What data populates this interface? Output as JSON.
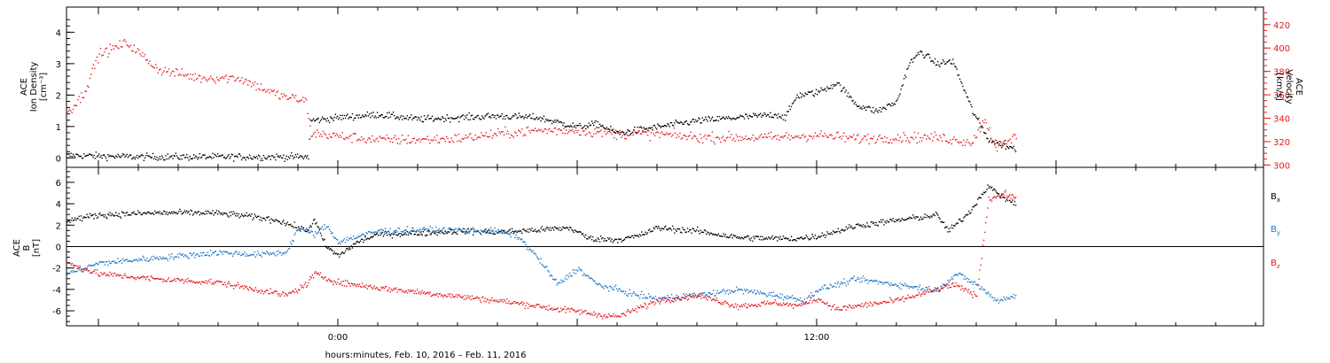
{
  "xlabel": "hours:minutes, Feb. 10, 2016 – Feb. 11, 2016",
  "x_ticks": [
    {
      "t": 0,
      "label": "0:00"
    },
    {
      "t": 12,
      "label": "12:00"
    }
  ],
  "xlim": [
    -6.8,
    23.2
  ],
  "data_end_hour": 17.0,
  "chart_data": [
    {
      "type": "scatter",
      "title": "",
      "ylabel": [
        "ACE",
        "Ion Density",
        "[cm⁻³]"
      ],
      "ylim": [
        -0.3,
        4.8
      ],
      "yticks": [
        0,
        1,
        2,
        3,
        4
      ],
      "y2label": [
        "ACE",
        "Velocity",
        "[km/s]"
      ],
      "y2lim": [
        298,
        435
      ],
      "y2ticks": [
        300,
        320,
        340,
        360,
        380,
        400,
        420
      ],
      "grid": false,
      "series": [
        {
          "name": "",
          "axis": "left",
          "color": "#000000",
          "x": [
            -6.8,
            -5.0,
            -3.0,
            -1.5,
            -0.75,
            -0.7,
            0.0,
            1.0,
            2.0,
            3.0,
            4.0,
            5.0,
            6.0,
            6.5,
            7.0,
            8.0,
            9.0,
            10.0,
            11.0,
            11.2,
            11.5,
            12.0,
            12.5,
            13.0,
            13.5,
            14.0,
            14.3,
            14.6,
            15.0,
            15.4,
            15.9,
            16.3,
            16.7,
            17.0
          ],
          "y": [
            0.1,
            0.05,
            0.05,
            0.05,
            0.05,
            1.2,
            1.3,
            1.4,
            1.25,
            1.3,
            1.35,
            1.3,
            1.0,
            1.1,
            0.8,
            1.0,
            1.2,
            1.3,
            1.4,
            1.3,
            2.0,
            2.1,
            2.4,
            1.7,
            1.5,
            1.8,
            3.0,
            3.4,
            3.0,
            3.1,
            1.5,
            0.6,
            0.4,
            0.3
          ]
        },
        {
          "name": "",
          "axis": "right",
          "color": "#e4191c",
          "x": [
            -6.8,
            -6.4,
            -6.0,
            -5.3,
            -4.5,
            -3.5,
            -2.5,
            -1.5,
            -0.8,
            -0.7,
            0.0,
            1.0,
            2.0,
            3.0,
            4.0,
            5.0,
            6.0,
            7.0,
            8.0,
            9.0,
            10.0,
            11.0,
            12.0,
            13.0,
            14.0,
            15.0,
            15.9,
            16.2,
            16.5,
            17.0
          ],
          "y": [
            345,
            360,
            395,
            405,
            382,
            375,
            375,
            360,
            355,
            328,
            325,
            322,
            322,
            323,
            327,
            330,
            330,
            327,
            327,
            324,
            324,
            324,
            326,
            323,
            324,
            324,
            320,
            340,
            315,
            325
          ]
        }
      ]
    },
    {
      "type": "scatter",
      "title": "",
      "ylabel": [
        "ACE",
        "B",
        "[nT]"
      ],
      "ylim": [
        -7.4,
        7.4
      ],
      "yticks": [
        -6,
        -4,
        -2,
        0,
        2,
        4,
        6
      ],
      "zero_line": true,
      "grid": false,
      "series": [
        {
          "name": "B",
          "sub": "x",
          "color": "#000000",
          "x": [
            -6.8,
            -6.0,
            -4.5,
            -3.2,
            -2.5,
            -1.5,
            -0.8,
            -0.6,
            -0.3,
            0.0,
            0.5,
            1.0,
            2.0,
            3.0,
            4.0,
            5.0,
            5.8,
            6.3,
            7.0,
            7.5,
            8.0,
            9.0,
            10.0,
            11.0,
            11.5,
            12.0,
            13.0,
            14.0,
            15.0,
            15.3,
            15.8,
            16.3,
            16.5,
            17.0
          ],
          "y": [
            2.5,
            3.0,
            3.2,
            3.2,
            3.0,
            2.5,
            1.5,
            2.5,
            0.0,
            -0.8,
            0.5,
            1.2,
            1.3,
            1.5,
            1.4,
            1.6,
            1.8,
            0.8,
            0.7,
            1.0,
            1.8,
            1.5,
            0.9,
            0.8,
            0.8,
            1.0,
            2.0,
            2.5,
            3.0,
            1.5,
            3.2,
            5.8,
            5.0,
            4.0
          ]
        },
        {
          "name": "B",
          "sub": "y",
          "color": "#1f78c8",
          "x": [
            -6.8,
            -6.0,
            -4.5,
            -3.0,
            -2.0,
            -1.3,
            -1.0,
            -0.6,
            -0.3,
            0.0,
            0.5,
            1.0,
            2.0,
            3.0,
            4.0,
            4.5,
            5.0,
            5.5,
            6.0,
            6.5,
            7.0,
            7.5,
            8.0,
            9.0,
            10.0,
            11.0,
            11.7,
            12.0,
            13.0,
            14.0,
            15.0,
            15.5,
            16.0,
            16.5,
            17.0
          ],
          "y": [
            -2.5,
            -1.5,
            -1.0,
            -0.5,
            -0.7,
            -0.5,
            1.8,
            1.2,
            2.0,
            0.5,
            1.0,
            1.5,
            1.6,
            1.6,
            1.5,
            1.0,
            -1.0,
            -3.5,
            -2.0,
            -3.5,
            -4.0,
            -4.5,
            -4.8,
            -4.5,
            -4.0,
            -4.5,
            -5.0,
            -4.0,
            -3.0,
            -3.5,
            -4.0,
            -2.5,
            -3.5,
            -5.0,
            -4.5
          ]
        },
        {
          "name": "B",
          "sub": "z",
          "color": "#e4191c",
          "x": [
            -6.8,
            -6.0,
            -4.5,
            -3.0,
            -2.0,
            -1.3,
            -0.8,
            -0.6,
            0.0,
            1.0,
            2.0,
            3.0,
            4.0,
            5.0,
            5.5,
            6.0,
            6.5,
            7.0,
            8.0,
            9.0,
            10.0,
            11.0,
            11.5,
            12.0,
            12.5,
            13.0,
            14.0,
            15.0,
            15.4,
            16.0,
            16.3,
            16.7,
            17.0
          ],
          "y": [
            -1.5,
            -2.5,
            -3.0,
            -3.3,
            -4.0,
            -4.5,
            -3.5,
            -2.5,
            -3.3,
            -3.8,
            -4.2,
            -4.6,
            -5.0,
            -5.5,
            -5.8,
            -6.0,
            -6.3,
            -6.5,
            -5.0,
            -4.5,
            -5.5,
            -5.2,
            -5.5,
            -4.8,
            -5.8,
            -5.5,
            -5.0,
            -4.0,
            -3.5,
            -4.5,
            4.5,
            5.0,
            4.5
          ]
        }
      ]
    }
  ]
}
